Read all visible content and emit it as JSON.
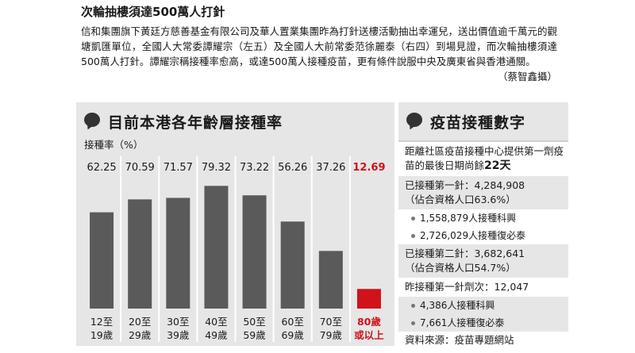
{
  "caption": {
    "headline": "次輪抽樓須達500萬人打針",
    "body": "信和集團旗下黃廷方慈善基金有限公司及華人置業集團昨為打針送樓活動抽出幸運兒，送出價值逾千萬元的觀塘凱匯單位，全國人大常委譚耀宗（左五）及全國人大前常委范徐麗泰（右四）到場見證，而次輪抽樓須達500萬人打針。譚耀宗稱接種率愈高，或達500萬人接種疫苗，更有條件說服中央及廣東省與香港通關。",
    "credit": "（蔡智鑫攝）"
  },
  "left_panel": {
    "title": "目前本港各年齡層接種率"
  },
  "right_panel": {
    "title": "疫苗接種數字"
  },
  "chart_data": {
    "type": "bar",
    "title": "目前本港各年齡層接種率",
    "ylabel": "接種率（%）",
    "categories": [
      [
        "12至",
        "19歲"
      ],
      [
        "20至",
        "29歲"
      ],
      [
        "30至",
        "39歲"
      ],
      [
        "40至",
        "49歲"
      ],
      [
        "50至",
        "59歲"
      ],
      [
        "60至",
        "69歲"
      ],
      [
        "70至",
        "79歲"
      ],
      [
        "80歲",
        "或以上"
      ]
    ],
    "values": [
      62.25,
      70.59,
      71.57,
      79.32,
      73.22,
      56.26,
      37.26,
      12.69
    ],
    "value_labels": [
      "62.25",
      "70.59",
      "71.57",
      "79.32",
      "73.22",
      "56.26",
      "37.26",
      "12.69"
    ],
    "highlight_index": 7,
    "colors": {
      "bar": "#5a5a5a",
      "highlight": "#d0121b",
      "grid": "#ffffff"
    },
    "ylim": [
      0,
      100
    ],
    "grid": true
  },
  "stats": {
    "lead": "距離社區疫苗接種中心提供第一劑疫苗的最後日期尚餘",
    "lead_days": "22天",
    "dose1_total": "已接種第一針：4,284,908",
    "dose1_pct": "（佔合資格人口63.6%）",
    "dose1_comirnaty": "1,558,879人接種科興",
    "dose1_biontech": "2,726,029人接種復必泰",
    "dose2_total": "已接種第二針：3,682,641",
    "dose2_pct": "（佔合資格人口54.7%）",
    "yesterday_total": "昨接種第一針劑次：12,047",
    "yesterday_sinovac": "4,386人接種科興",
    "yesterday_biontech": "7,661人接種復必泰",
    "source": "資料來源：疫苗專題網站"
  }
}
